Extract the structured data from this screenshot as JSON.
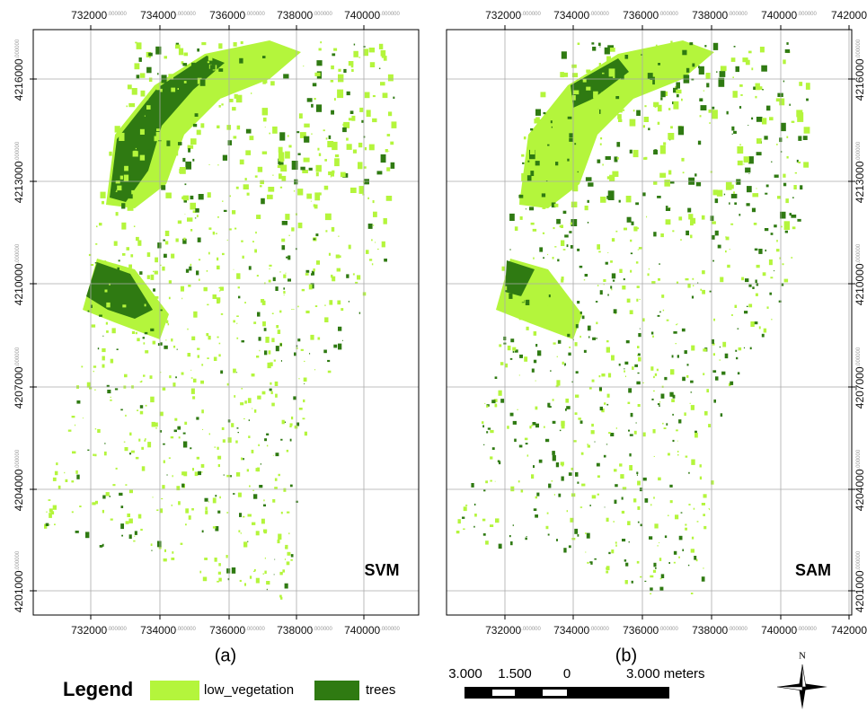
{
  "panels": [
    {
      "id_label": "(a)",
      "method": "SVM",
      "top_labels": [
        {
          "text": "732000",
          "suffix": ".000000"
        },
        {
          "text": "734000",
          "suffix": ".000000"
        },
        {
          "text": "736000",
          "suffix": ".000000"
        },
        {
          "text": "738000",
          "suffix": ".000000"
        },
        {
          "text": "740000",
          "suffix": ".000000"
        }
      ],
      "bottom_labels": [
        {
          "text": "732000",
          "suffix": ".000000"
        },
        {
          "text": "734000",
          "suffix": ".000000"
        },
        {
          "text": "736000",
          "suffix": ".000000"
        },
        {
          "text": "738000",
          "suffix": ".000000"
        },
        {
          "text": "740000",
          "suffix": ".000000"
        }
      ],
      "side_labels": [
        {
          "text": "4216000",
          "suffix": ".000000"
        },
        {
          "text": "4213000",
          "suffix": ".000000"
        },
        {
          "text": "4210000",
          "suffix": ".000000"
        },
        {
          "text": "4207000",
          "suffix": ".000000"
        },
        {
          "text": "4204000",
          "suffix": ".000000"
        },
        {
          "text": "4201000",
          "suffix": ".000000"
        }
      ]
    },
    {
      "id_label": "(b)",
      "method": "SAM",
      "top_labels": [
        {
          "text": "732000",
          "suffix": ".000000"
        },
        {
          "text": "734000",
          "suffix": ".000000"
        },
        {
          "text": "736000",
          "suffix": ".000000"
        },
        {
          "text": "738000",
          "suffix": ".000000"
        },
        {
          "text": "740000",
          "suffix": ".000000"
        },
        {
          "text": "742000"
        }
      ],
      "bottom_labels": [
        {
          "text": "732000",
          "suffix": ".000000"
        },
        {
          "text": "734000",
          "suffix": ".000000"
        },
        {
          "text": "736000",
          "suffix": ".000000"
        },
        {
          "text": "738000",
          "suffix": ".000000"
        },
        {
          "text": "740000",
          "suffix": ".000000"
        },
        {
          "text": "742000"
        }
      ],
      "side_labels": [
        {
          "text": "4216000",
          "suffix": ".000000"
        },
        {
          "text": "4213000",
          "suffix": ".000000"
        },
        {
          "text": "4210000",
          "suffix": ".000000"
        },
        {
          "text": "4207000",
          "suffix": ".000000"
        },
        {
          "text": "4204000",
          "suffix": ".000000"
        },
        {
          "text": "4201000",
          "suffix": ".000000"
        }
      ]
    }
  ],
  "legend": {
    "title": "Legend",
    "items": [
      {
        "label": "low_vegetation",
        "color": "#b4f53c"
      },
      {
        "label": "trees",
        "color": "#2f7a12"
      }
    ]
  },
  "scale_bar": {
    "labels": [
      "3.000",
      "1.500",
      "0",
      "3.000 meters"
    ]
  },
  "north_arrow": {
    "label": "N"
  }
}
